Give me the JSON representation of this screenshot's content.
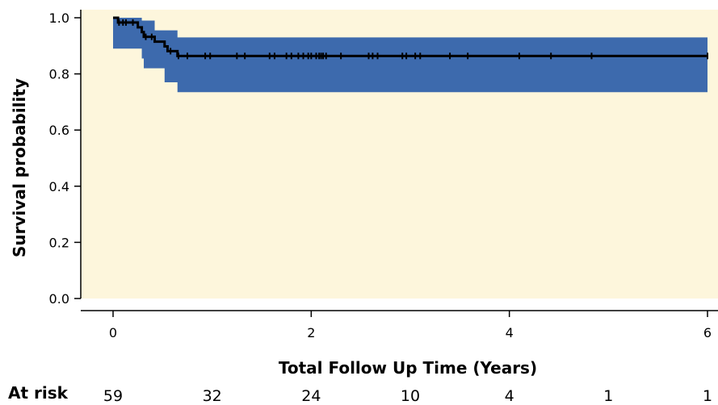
{
  "chart_data": {
    "type": "line",
    "xlabel": "Total Follow Up Time (Years)",
    "ylabel": "Survival probability",
    "xlim": [
      0,
      6
    ],
    "ylim": [
      0,
      1.0
    ],
    "x_ticks": [
      "0",
      "2",
      "4",
      "6"
    ],
    "y_ticks": [
      "0.0",
      "0.2",
      "0.4",
      "0.6",
      "0.8",
      "1.0"
    ],
    "grid": false,
    "colors": {
      "plot_background": "#fdf6dc",
      "confidence_band": "#3d6aad",
      "survival_line": "#000000"
    },
    "series": [
      {
        "values": [
          {
            "x": 0.0,
            "y": 1.0
          },
          {
            "x": 0.05,
            "y": 0.983
          },
          {
            "x": 0.25,
            "y": 0.966
          },
          {
            "x": 0.29,
            "y": 0.949
          },
          {
            "x": 0.31,
            "y": 0.932
          },
          {
            "x": 0.42,
            "y": 0.915
          },
          {
            "x": 0.52,
            "y": 0.898
          },
          {
            "x": 0.55,
            "y": 0.881
          },
          {
            "x": 0.65,
            "y": 0.864
          },
          {
            "x": 6.0,
            "y": 0.864
          }
        ]
      }
    ],
    "confidence_band": {
      "upper": [
        {
          "x": 0.0,
          "y": 1.0
        },
        {
          "x": 0.29,
          "y": 0.99
        },
        {
          "x": 0.42,
          "y": 0.955
        },
        {
          "x": 0.65,
          "y": 0.93
        },
        {
          "x": 6.0,
          "y": 0.93
        }
      ],
      "lower": [
        {
          "x": 0.0,
          "y": 0.89
        },
        {
          "x": 0.29,
          "y": 0.855
        },
        {
          "x": 0.31,
          "y": 0.82
        },
        {
          "x": 0.52,
          "y": 0.77
        },
        {
          "x": 0.65,
          "y": 0.735
        },
        {
          "x": 6.0,
          "y": 0.735
        }
      ]
    },
    "censor_times": [
      0.06,
      0.1,
      0.13,
      0.2,
      0.33,
      0.39,
      0.58,
      0.66,
      0.75,
      0.93,
      0.98,
      1.25,
      1.33,
      1.58,
      1.63,
      1.75,
      1.8,
      1.87,
      1.92,
      1.97,
      2.0,
      2.05,
      2.08,
      2.1,
      2.12,
      2.15,
      2.3,
      2.58,
      2.62,
      2.67,
      2.92,
      2.96,
      3.05,
      3.1,
      3.4,
      3.58,
      4.1,
      4.42,
      4.83,
      6.0
    ],
    "at_risk": {
      "label": "At risk",
      "values": [
        "59",
        "32",
        "24",
        "10",
        "4",
        "1",
        "1"
      ]
    }
  }
}
